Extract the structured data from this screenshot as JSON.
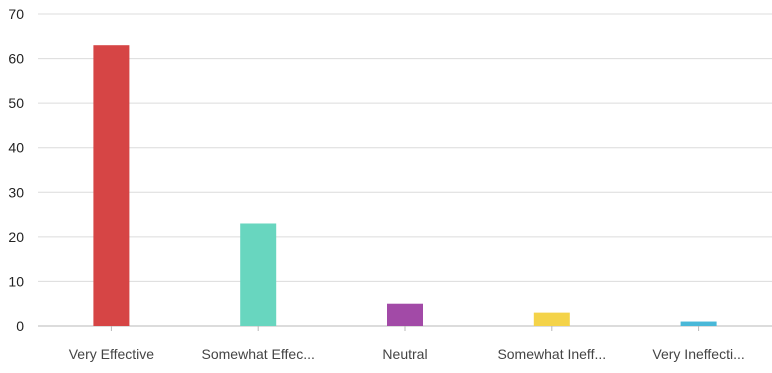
{
  "chart_data": {
    "type": "bar",
    "title": "",
    "xlabel": "",
    "ylabel": "",
    "categories": [
      "Very Effective",
      "Somewhat Effec...",
      "Neutral",
      "Somewhat Ineff...",
      "Very Ineffecti..."
    ],
    "values": [
      63,
      23,
      5,
      3,
      1
    ],
    "colors": [
      "#d64545",
      "#68d6bf",
      "#a24aa7",
      "#f4d349",
      "#49b8d8"
    ],
    "ylim": [
      0,
      70
    ],
    "yticks": [
      0,
      10,
      20,
      30,
      40,
      50,
      60,
      70
    ],
    "grid": true,
    "legend": "none"
  }
}
